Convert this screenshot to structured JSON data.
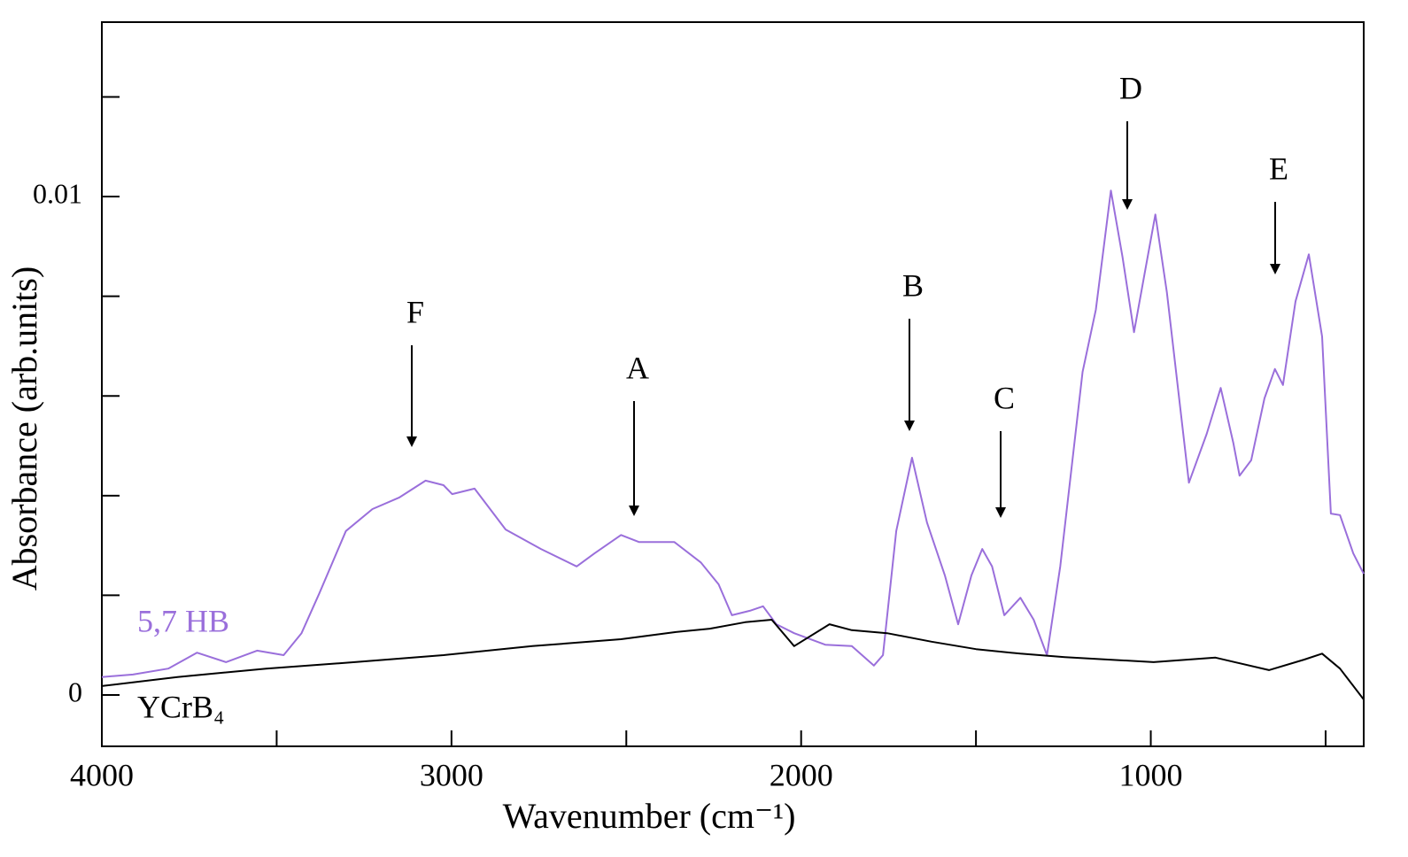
{
  "chart_data": {
    "type": "line",
    "x_label": "Wavenumber (cm⁻¹)",
    "y_label": "Absorbance (arb.units)",
    "xlim": [
      4000,
      391
    ],
    "ylim": [
      -0.00103,
      0.0135
    ],
    "xticks": [
      4000,
      3000,
      2000,
      1000
    ],
    "xminor_ticks": [
      3500,
      2500,
      1500,
      500
    ],
    "yticks": [
      0,
      0.01
    ],
    "yminor_ticks": [
      0.002,
      0.004,
      0.006,
      0.008,
      0.012
    ],
    "annotations": [
      "F",
      "A",
      "B",
      "C",
      "D",
      "E"
    ],
    "series": [
      {
        "name": "5,7 HB",
        "color": "#9a6fdb",
        "x": [
          4000,
          3911,
          3810,
          3728,
          3645,
          3556,
          3480,
          3429,
          3378,
          3302,
          3226,
          3150,
          3074,
          3023,
          2998,
          2934,
          2845,
          2744,
          2642,
          2591,
          2515,
          2464,
          2363,
          2287,
          2236,
          2198,
          2147,
          2109,
          2071,
          2020,
          1931,
          1855,
          1792,
          1766,
          1728,
          1683,
          1640,
          1589,
          1551,
          1513,
          1482,
          1454,
          1419,
          1373,
          1335,
          1297,
          1259,
          1195,
          1157,
          1114,
          1081,
          1048,
          1018,
          987,
          954,
          891,
          840,
          800,
          764,
          746,
          713,
          675,
          645,
          622,
          586,
          548,
          510,
          485,
          459,
          421,
          391
        ],
        "values": [
          0.00036,
          0.00041,
          0.00053,
          0.00085,
          0.00066,
          0.00089,
          0.0008,
          0.00124,
          0.00204,
          0.00329,
          0.00373,
          0.00396,
          0.0043,
          0.00421,
          0.00403,
          0.00414,
          0.00332,
          0.00293,
          0.00258,
          0.00284,
          0.00321,
          0.00307,
          0.00307,
          0.00266,
          0.00222,
          0.0016,
          0.00169,
          0.00178,
          0.00142,
          0.00124,
          0.00101,
          0.00098,
          0.00059,
          0.0008,
          0.00329,
          0.00476,
          0.00346,
          0.0024,
          0.00142,
          0.0024,
          0.00293,
          0.00258,
          0.0016,
          0.00195,
          0.00151,
          0.0008,
          0.00258,
          0.00648,
          0.00773,
          0.01012,
          0.00879,
          0.00728,
          0.00844,
          0.00964,
          0.00808,
          0.00426,
          0.00524,
          0.00616,
          0.00506,
          0.0044,
          0.00471,
          0.00595,
          0.00654,
          0.00622,
          0.0079,
          0.00884,
          0.00719,
          0.00364,
          0.00361,
          0.00284,
          0.00243
        ]
      },
      {
        "name": "YCrB₄",
        "color": "#000000",
        "x": [
          4000,
          3784,
          3530,
          3277,
          3023,
          2769,
          2515,
          2363,
          2261,
          2160,
          2084,
          2020,
          1919,
          1855,
          1754,
          1627,
          1500,
          1373,
          1246,
          992,
          815,
          662,
          561,
          510,
          459,
          391
        ],
        "values": [
          0.00018,
          0.00036,
          0.00053,
          0.00066,
          0.0008,
          0.00098,
          0.00112,
          0.00126,
          0.00133,
          0.00146,
          0.00151,
          0.00098,
          0.00142,
          0.0013,
          0.00124,
          0.00107,
          0.00092,
          0.00083,
          0.00076,
          0.00066,
          0.00075,
          0.0005,
          0.00071,
          0.00083,
          0.00053,
          -9e-05
        ]
      }
    ]
  }
}
